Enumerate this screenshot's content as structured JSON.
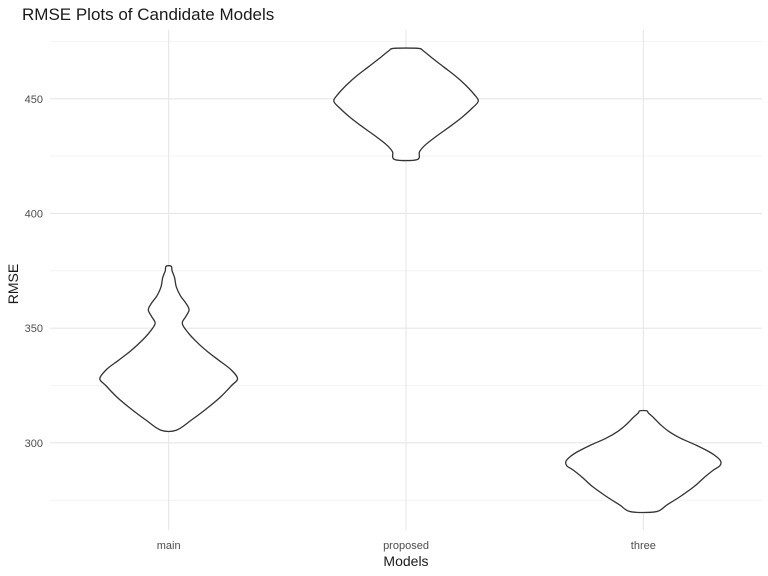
{
  "chart_data": {
    "type": "violin",
    "title": "RMSE Plots of Candidate Models",
    "xlabel": "Models",
    "ylabel": "RMSE",
    "categories": [
      "main",
      "proposed",
      "three"
    ],
    "y_ticks": [
      300,
      350,
      400,
      450
    ],
    "ylim": [
      262,
      480
    ],
    "grid": true,
    "violins": [
      {
        "name": "main",
        "profile": [
          [
            305.5,
            9
          ],
          [
            310,
            27
          ],
          [
            315,
            45
          ],
          [
            320,
            61
          ],
          [
            325,
            74
          ],
          [
            328,
            81
          ],
          [
            332,
            73
          ],
          [
            336,
            59
          ],
          [
            340,
            45
          ],
          [
            344,
            33
          ],
          [
            348,
            23
          ],
          [
            352,
            16
          ],
          [
            355,
            20
          ],
          [
            358,
            24
          ],
          [
            361,
            20
          ],
          [
            364,
            14
          ],
          [
            368,
            9
          ],
          [
            372,
            7
          ],
          [
            375,
            4
          ],
          [
            377,
            3
          ]
        ]
      },
      {
        "name": "proposed",
        "profile": [
          [
            423.5,
            13
          ],
          [
            427,
            16
          ],
          [
            430,
            23
          ],
          [
            434,
            37
          ],
          [
            438,
            52
          ],
          [
            442,
            66
          ],
          [
            446,
            78
          ],
          [
            449,
            85
          ],
          [
            452,
            80
          ],
          [
            456,
            70
          ],
          [
            460,
            58
          ],
          [
            464,
            44
          ],
          [
            468,
            30
          ],
          [
            471,
            20
          ],
          [
            472,
            14
          ]
        ]
      },
      {
        "name": "three",
        "profile": [
          [
            270,
            15
          ],
          [
            273,
            28
          ],
          [
            277,
            45
          ],
          [
            281,
            60
          ],
          [
            285,
            72
          ],
          [
            288,
            82
          ],
          [
            290,
            90
          ],
          [
            292,
            91
          ],
          [
            294,
            86
          ],
          [
            296,
            78
          ],
          [
            299,
            62
          ],
          [
            302,
            44
          ],
          [
            305,
            30
          ],
          [
            308,
            20
          ],
          [
            311,
            12
          ],
          [
            313,
            6
          ],
          [
            314,
            4
          ]
        ]
      }
    ]
  }
}
